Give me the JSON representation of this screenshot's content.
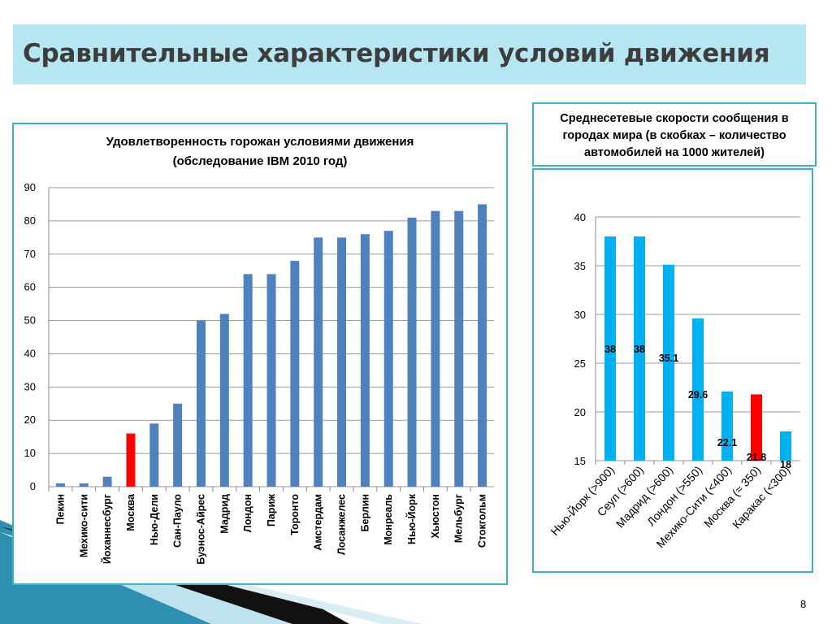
{
  "slide": {
    "title": "Сравнительные характеристики условий движения",
    "page_number": "8",
    "colors": {
      "title_band": "#b7e6f3",
      "panel_border": "#3eb1c4"
    }
  },
  "chart_data": [
    {
      "type": "bar",
      "title": "Удовлетворенность горожан условиями движения (обследование IBM 2010 год)",
      "title_lines": [
        "Удовлетворенность горожан условиями движения",
        "(обследование IBM 2010 год)"
      ],
      "categories": [
        "Пекин",
        "Мехико-сити",
        "Йоханнесбург",
        "Москва",
        "Нью-Дели",
        "Сан-Пауло",
        "Буэнос-Айрес",
        "Мадрид",
        "Лондон",
        "Париж",
        "Торонто",
        "Амстердам",
        "Лосанжелес",
        "Берлин",
        "Монреаль",
        "Нью-Йорк",
        "Хьюстон",
        "Мельбург",
        "Стокгольм"
      ],
      "values": [
        1,
        1,
        3,
        16,
        19,
        25,
        50,
        52,
        64,
        64,
        68,
        75,
        75,
        76,
        77,
        81,
        83,
        83,
        85
      ],
      "highlight_index": 3,
      "ylim": [
        0,
        90
      ],
      "yticks": [
        0,
        10,
        20,
        30,
        40,
        50,
        60,
        70,
        80,
        90
      ],
      "grid": true,
      "bar_color": "#4f81bd",
      "highlight_color": "#ff0000"
    },
    {
      "type": "bar",
      "title": "Среднесетевые скорости сообщения в городах мира (в скобках – количество автомобилей на 1000 жителей)",
      "title_lines": [
        "Среднесетевые скорости сообщения в",
        "городах мира (в скобках – количество",
        "автомобилей на 1000 жителей)"
      ],
      "categories": [
        "Нью-Йорк (>900)",
        "Сеул (>600)",
        "Мадрид (>600)",
        "Лондон (>550)",
        "Мехико-Сити (<400)",
        "Москва (≈ 350)",
        "Каракас (<300)"
      ],
      "values": [
        38,
        38,
        35.1,
        29.6,
        22.1,
        21.8,
        18
      ],
      "data_labels": [
        "38",
        "38",
        "35.1",
        "29.6",
        "22.1",
        "21.8",
        "18"
      ],
      "highlight_index": 5,
      "ylim": [
        15,
        40
      ],
      "yticks": [
        15,
        20,
        25,
        30,
        35,
        40
      ],
      "grid": true,
      "bar_color": "#00b0f0",
      "highlight_color": "#ff0000"
    }
  ]
}
